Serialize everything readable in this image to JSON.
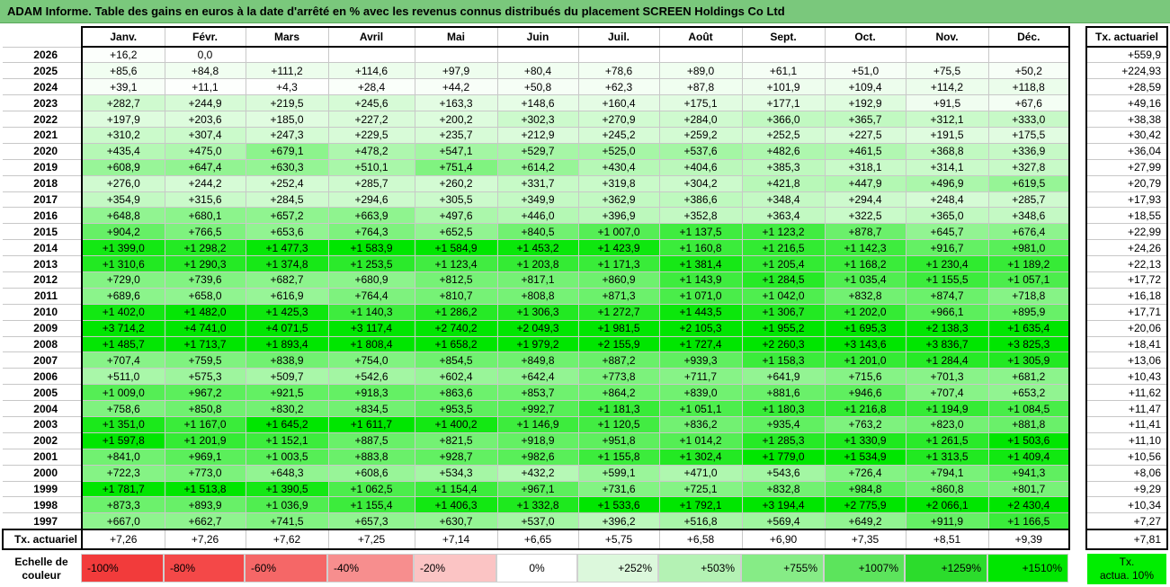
{
  "title": "ADAM Informe. Table des gains en euros à la date d'arrêté en % avec les revenus connus distribués du placement SCREEN Holdings Co Ltd",
  "chart_data": {
    "type": "table",
    "columns": [
      "Janv.",
      "Févr.",
      "Mars",
      "Avril",
      "Mai",
      "Juin",
      "Juil.",
      "Août",
      "Sept.",
      "Oct.",
      "Nov.",
      "Déc."
    ],
    "side_header": "Tx. actuariel",
    "rows": [
      {
        "year": "2026",
        "values": [
          "+16,2",
          "0,0",
          "",
          "",
          "",
          "",
          "",
          "",
          "",
          "",
          "",
          ""
        ],
        "nums": [
          16.2,
          0,
          null,
          null,
          null,
          null,
          null,
          null,
          null,
          null,
          null,
          null
        ],
        "tx": "+559,9"
      },
      {
        "year": "2025",
        "values": [
          "+85,6",
          "+84,8",
          "+111,2",
          "+114,6",
          "+97,9",
          "+80,4",
          "+78,6",
          "+89,0",
          "+61,1",
          "+51,0",
          "+75,5",
          "+50,2"
        ],
        "nums": [
          85.6,
          84.8,
          111.2,
          114.6,
          97.9,
          80.4,
          78.6,
          89.0,
          61.1,
          51.0,
          75.5,
          50.2
        ],
        "tx": "+224,93"
      },
      {
        "year": "2024",
        "values": [
          "+39,1",
          "+11,1",
          "+4,3",
          "+28,4",
          "+44,2",
          "+50,8",
          "+62,3",
          "+87,8",
          "+101,9",
          "+109,4",
          "+114,2",
          "+118,8"
        ],
        "nums": [
          39.1,
          11.1,
          4.3,
          28.4,
          44.2,
          50.8,
          62.3,
          87.8,
          101.9,
          109.4,
          114.2,
          118.8
        ],
        "tx": "+28,59"
      },
      {
        "year": "2023",
        "values": [
          "+282,7",
          "+244,9",
          "+219,5",
          "+245,6",
          "+163,3",
          "+148,6",
          "+160,4",
          "+175,1",
          "+177,1",
          "+192,9",
          "+91,5",
          "+67,6"
        ],
        "nums": [
          282.7,
          244.9,
          219.5,
          245.6,
          163.3,
          148.6,
          160.4,
          175.1,
          177.1,
          192.9,
          91.5,
          67.6
        ],
        "tx": "+49,16"
      },
      {
        "year": "2022",
        "values": [
          "+197,9",
          "+203,6",
          "+185,0",
          "+227,2",
          "+200,2",
          "+302,3",
          "+270,9",
          "+284,0",
          "+366,0",
          "+365,7",
          "+312,1",
          "+333,0"
        ],
        "nums": [
          197.9,
          203.6,
          185.0,
          227.2,
          200.2,
          302.3,
          270.9,
          284.0,
          366.0,
          365.7,
          312.1,
          333.0
        ],
        "tx": "+38,38"
      },
      {
        "year": "2021",
        "values": [
          "+310,2",
          "+307,4",
          "+247,3",
          "+229,5",
          "+235,7",
          "+212,9",
          "+245,2",
          "+259,2",
          "+252,5",
          "+227,5",
          "+191,5",
          "+175,5"
        ],
        "nums": [
          310.2,
          307.4,
          247.3,
          229.5,
          235.7,
          212.9,
          245.2,
          259.2,
          252.5,
          227.5,
          191.5,
          175.5
        ],
        "tx": "+30,42"
      },
      {
        "year": "2020",
        "values": [
          "+435,4",
          "+475,0",
          "+679,1",
          "+478,2",
          "+547,1",
          "+529,7",
          "+525,0",
          "+537,6",
          "+482,6",
          "+461,5",
          "+368,8",
          "+336,9"
        ],
        "nums": [
          435.4,
          475.0,
          679.1,
          478.2,
          547.1,
          529.7,
          525.0,
          537.6,
          482.6,
          461.5,
          368.8,
          336.9
        ],
        "tx": "+36,04"
      },
      {
        "year": "2019",
        "values": [
          "+608,9",
          "+647,4",
          "+630,3",
          "+510,1",
          "+751,4",
          "+614,2",
          "+430,4",
          "+404,6",
          "+385,3",
          "+318,1",
          "+314,1",
          "+327,8"
        ],
        "nums": [
          608.9,
          647.4,
          630.3,
          510.1,
          751.4,
          614.2,
          430.4,
          404.6,
          385.3,
          318.1,
          314.1,
          327.8
        ],
        "tx": "+27,99"
      },
      {
        "year": "2018",
        "values": [
          "+276,0",
          "+244,2",
          "+252,4",
          "+285,7",
          "+260,2",
          "+331,7",
          "+319,8",
          "+304,2",
          "+421,8",
          "+447,9",
          "+496,9",
          "+619,5"
        ],
        "nums": [
          276.0,
          244.2,
          252.4,
          285.7,
          260.2,
          331.7,
          319.8,
          304.2,
          421.8,
          447.9,
          496.9,
          619.5
        ],
        "tx": "+20,79"
      },
      {
        "year": "2017",
        "values": [
          "+354,9",
          "+315,6",
          "+284,5",
          "+294,6",
          "+305,5",
          "+349,9",
          "+362,9",
          "+386,6",
          "+348,4",
          "+294,4",
          "+248,4",
          "+285,7"
        ],
        "nums": [
          354.9,
          315.6,
          284.5,
          294.6,
          305.5,
          349.9,
          362.9,
          386.6,
          348.4,
          294.4,
          248.4,
          285.7
        ],
        "tx": "+17,93"
      },
      {
        "year": "2016",
        "values": [
          "+648,8",
          "+680,1",
          "+657,2",
          "+663,9",
          "+497,6",
          "+446,0",
          "+396,9",
          "+352,8",
          "+363,4",
          "+322,5",
          "+365,0",
          "+348,6"
        ],
        "nums": [
          648.8,
          680.1,
          657.2,
          663.9,
          497.6,
          446.0,
          396.9,
          352.8,
          363.4,
          322.5,
          365.0,
          348.6
        ],
        "tx": "+18,55"
      },
      {
        "year": "2015",
        "values": [
          "+904,2",
          "+766,5",
          "+653,6",
          "+764,3",
          "+652,5",
          "+840,5",
          "+1 007,0",
          "+1 137,5",
          "+1 123,2",
          "+878,7",
          "+645,7",
          "+676,4"
        ],
        "nums": [
          904.2,
          766.5,
          653.6,
          764.3,
          652.5,
          840.5,
          1007.0,
          1137.5,
          1123.2,
          878.7,
          645.7,
          676.4
        ],
        "tx": "+22,99"
      },
      {
        "year": "2014",
        "values": [
          "+1 399,0",
          "+1 298,2",
          "+1 477,3",
          "+1 583,9",
          "+1 584,9",
          "+1 453,2",
          "+1 423,9",
          "+1 160,8",
          "+1 216,5",
          "+1 142,3",
          "+916,7",
          "+981,0"
        ],
        "nums": [
          1399.0,
          1298.2,
          1477.3,
          1583.9,
          1584.9,
          1453.2,
          1423.9,
          1160.8,
          1216.5,
          1142.3,
          916.7,
          981.0
        ],
        "tx": "+24,26"
      },
      {
        "year": "2013",
        "values": [
          "+1 310,6",
          "+1 290,3",
          "+1 374,8",
          "+1 253,5",
          "+1 123,4",
          "+1 203,8",
          "+1 171,3",
          "+1 381,4",
          "+1 205,4",
          "+1 168,2",
          "+1 230,4",
          "+1 189,2"
        ],
        "nums": [
          1310.6,
          1290.3,
          1374.8,
          1253.5,
          1123.4,
          1203.8,
          1171.3,
          1381.4,
          1205.4,
          1168.2,
          1230.4,
          1189.2
        ],
        "tx": "+22,13"
      },
      {
        "year": "2012",
        "values": [
          "+729,0",
          "+739,6",
          "+682,7",
          "+680,9",
          "+812,5",
          "+817,1",
          "+860,9",
          "+1 143,9",
          "+1 284,5",
          "+1 035,4",
          "+1 155,5",
          "+1 057,1"
        ],
        "nums": [
          729.0,
          739.6,
          682.7,
          680.9,
          812.5,
          817.1,
          860.9,
          1143.9,
          1284.5,
          1035.4,
          1155.5,
          1057.1
        ],
        "tx": "+17,72"
      },
      {
        "year": "2011",
        "values": [
          "+689,6",
          "+658,0",
          "+616,9",
          "+764,4",
          "+810,7",
          "+808,8",
          "+871,3",
          "+1 071,0",
          "+1 042,0",
          "+832,8",
          "+874,7",
          "+718,8"
        ],
        "nums": [
          689.6,
          658.0,
          616.9,
          764.4,
          810.7,
          808.8,
          871.3,
          1071.0,
          1042.0,
          832.8,
          874.7,
          718.8
        ],
        "tx": "+16,18"
      },
      {
        "year": "2010",
        "values": [
          "+1 402,0",
          "+1 482,0",
          "+1 425,3",
          "+1 140,3",
          "+1 286,2",
          "+1 306,3",
          "+1 272,7",
          "+1 443,5",
          "+1 306,7",
          "+1 202,0",
          "+966,1",
          "+895,9"
        ],
        "nums": [
          1402.0,
          1482.0,
          1425.3,
          1140.3,
          1286.2,
          1306.3,
          1272.7,
          1443.5,
          1306.7,
          1202.0,
          966.1,
          895.9
        ],
        "tx": "+17,71"
      },
      {
        "year": "2009",
        "values": [
          "+3 714,2",
          "+4 741,0",
          "+4 071,5",
          "+3 117,4",
          "+2 740,2",
          "+2 049,3",
          "+1 981,5",
          "+2 105,3",
          "+1 955,2",
          "+1 695,3",
          "+2 138,3",
          "+1 635,4"
        ],
        "nums": [
          3714.2,
          4741.0,
          4071.5,
          3117.4,
          2740.2,
          2049.3,
          1981.5,
          2105.3,
          1955.2,
          1695.3,
          2138.3,
          1635.4
        ],
        "tx": "+20,06"
      },
      {
        "year": "2008",
        "values": [
          "+1 485,7",
          "+1 713,7",
          "+1 893,4",
          "+1 808,4",
          "+1 658,2",
          "+1 979,2",
          "+2 155,9",
          "+1 727,4",
          "+2 260,3",
          "+3 143,6",
          "+3 836,7",
          "+3 825,3"
        ],
        "nums": [
          1485.7,
          1713.7,
          1893.4,
          1808.4,
          1658.2,
          1979.2,
          2155.9,
          1727.4,
          2260.3,
          3143.6,
          3836.7,
          3825.3
        ],
        "tx": "+18,41"
      },
      {
        "year": "2007",
        "values": [
          "+707,4",
          "+759,5",
          "+838,9",
          "+754,0",
          "+854,5",
          "+849,8",
          "+887,2",
          "+939,3",
          "+1 158,3",
          "+1 201,0",
          "+1 284,4",
          "+1 305,9"
        ],
        "nums": [
          707.4,
          759.5,
          838.9,
          754.0,
          854.5,
          849.8,
          887.2,
          939.3,
          1158.3,
          1201.0,
          1284.4,
          1305.9
        ],
        "tx": "+13,06"
      },
      {
        "year": "2006",
        "values": [
          "+511,0",
          "+575,3",
          "+509,7",
          "+542,6",
          "+602,4",
          "+642,4",
          "+773,8",
          "+711,7",
          "+641,9",
          "+715,6",
          "+701,3",
          "+681,2"
        ],
        "nums": [
          511.0,
          575.3,
          509.7,
          542.6,
          602.4,
          642.4,
          773.8,
          711.7,
          641.9,
          715.6,
          701.3,
          681.2
        ],
        "tx": "+10,43"
      },
      {
        "year": "2005",
        "values": [
          "+1 009,0",
          "+967,2",
          "+921,5",
          "+918,3",
          "+863,6",
          "+853,7",
          "+864,2",
          "+839,0",
          "+881,6",
          "+946,6",
          "+707,4",
          "+653,2"
        ],
        "nums": [
          1009.0,
          967.2,
          921.5,
          918.3,
          863.6,
          853.7,
          864.2,
          839.0,
          881.6,
          946.6,
          707.4,
          653.2
        ],
        "tx": "+11,62"
      },
      {
        "year": "2004",
        "values": [
          "+758,6",
          "+850,8",
          "+830,2",
          "+834,5",
          "+953,5",
          "+992,7",
          "+1 181,3",
          "+1 051,1",
          "+1 180,3",
          "+1 216,8",
          "+1 194,9",
          "+1 084,5"
        ],
        "nums": [
          758.6,
          850.8,
          830.2,
          834.5,
          953.5,
          992.7,
          1181.3,
          1051.1,
          1180.3,
          1216.8,
          1194.9,
          1084.5
        ],
        "tx": "+11,47"
      },
      {
        "year": "2003",
        "values": [
          "+1 351,0",
          "+1 167,0",
          "+1 645,2",
          "+1 611,7",
          "+1 400,2",
          "+1 146,9",
          "+1 120,5",
          "+836,2",
          "+935,4",
          "+763,2",
          "+823,0",
          "+881,8"
        ],
        "nums": [
          1351.0,
          1167.0,
          1645.2,
          1611.7,
          1400.2,
          1146.9,
          1120.5,
          836.2,
          935.4,
          763.2,
          823.0,
          881.8
        ],
        "tx": "+11,41"
      },
      {
        "year": "2002",
        "values": [
          "+1 597,8",
          "+1 201,9",
          "+1 152,1",
          "+887,5",
          "+821,5",
          "+918,9",
          "+951,8",
          "+1 014,2",
          "+1 285,3",
          "+1 330,9",
          "+1 261,5",
          "+1 503,6"
        ],
        "nums": [
          1597.8,
          1201.9,
          1152.1,
          887.5,
          821.5,
          918.9,
          951.8,
          1014.2,
          1285.3,
          1330.9,
          1261.5,
          1503.6
        ],
        "tx": "+11,10"
      },
      {
        "year": "2001",
        "values": [
          "+841,0",
          "+969,1",
          "+1 003,5",
          "+883,8",
          "+928,7",
          "+982,6",
          "+1 155,8",
          "+1 302,4",
          "+1 779,0",
          "+1 534,9",
          "+1 313,5",
          "+1 409,4"
        ],
        "nums": [
          841.0,
          969.1,
          1003.5,
          883.8,
          928.7,
          982.6,
          1155.8,
          1302.4,
          1779.0,
          1534.9,
          1313.5,
          1409.4
        ],
        "tx": "+10,56"
      },
      {
        "year": "2000",
        "values": [
          "+722,3",
          "+773,0",
          "+648,3",
          "+608,6",
          "+534,3",
          "+432,2",
          "+599,1",
          "+471,0",
          "+543,6",
          "+726,4",
          "+794,1",
          "+941,3"
        ],
        "nums": [
          722.3,
          773.0,
          648.3,
          608.6,
          534.3,
          432.2,
          599.1,
          471.0,
          543.6,
          726.4,
          794.1,
          941.3
        ],
        "tx": "+8,06"
      },
      {
        "year": "1999",
        "values": [
          "+1 781,7",
          "+1 513,8",
          "+1 390,5",
          "+1 062,5",
          "+1 154,4",
          "+967,1",
          "+731,6",
          "+725,1",
          "+832,8",
          "+984,8",
          "+860,8",
          "+801,7"
        ],
        "nums": [
          1781.7,
          1513.8,
          1390.5,
          1062.5,
          1154.4,
          967.1,
          731.6,
          725.1,
          832.8,
          984.8,
          860.8,
          801.7
        ],
        "tx": "+9,29"
      },
      {
        "year": "1998",
        "values": [
          "+873,3",
          "+893,9",
          "+1 036,9",
          "+1 155,4",
          "+1 406,3",
          "+1 332,8",
          "+1 533,6",
          "+1 792,1",
          "+3 194,4",
          "+2 775,9",
          "+2 066,1",
          "+2 430,4"
        ],
        "nums": [
          873.3,
          893.9,
          1036.9,
          1155.4,
          1406.3,
          1332.8,
          1533.6,
          1792.1,
          3194.4,
          2775.9,
          2066.1,
          2430.4
        ],
        "tx": "+10,34"
      },
      {
        "year": "1997",
        "values": [
          "+667,0",
          "+662,7",
          "+741,5",
          "+657,3",
          "+630,7",
          "+537,0",
          "+396,2",
          "+516,8",
          "+569,4",
          "+649,2",
          "+911,9",
          "+1 166,5"
        ],
        "nums": [
          667.0,
          662.7,
          741.5,
          657.3,
          630.7,
          537.0,
          396.2,
          516.8,
          569.4,
          649.2,
          911.9,
          1166.5
        ],
        "tx": "+7,27"
      }
    ],
    "footer": {
      "label": "Tx. actuariel",
      "values": [
        "+7,26",
        "+7,26",
        "+7,62",
        "+7,25",
        "+7,14",
        "+6,65",
        "+5,75",
        "+6,58",
        "+6,90",
        "+7,35",
        "+8,51",
        "+9,39"
      ],
      "total": "+7,81"
    },
    "scale": {
      "label": "Echelle de\ncouleur",
      "items": [
        {
          "text": "-100%",
          "color": "#f23b3b",
          "align": "left"
        },
        {
          "text": "-80%",
          "color": "#f44848",
          "align": "left"
        },
        {
          "text": "-60%",
          "color": "#f56767",
          "align": "left"
        },
        {
          "text": "-40%",
          "color": "#f78e8e",
          "align": "left"
        },
        {
          "text": "-20%",
          "color": "#fbc4c4",
          "align": "left"
        },
        {
          "text": "0%",
          "color": "#ffffff",
          "align": "center"
        },
        {
          "text": "+252%",
          "color": "#dcf8dc",
          "align": "right"
        },
        {
          "text": "+503%",
          "color": "#b4f2b4",
          "align": "right"
        },
        {
          "text": "+755%",
          "color": "#86ec86",
          "align": "right"
        },
        {
          "text": "+1007%",
          "color": "#5ce45c",
          "align": "right"
        },
        {
          "text": "+1259%",
          "color": "#2cdc2c",
          "align": "right"
        },
        {
          "text": "+1510%",
          "color": "#00e600",
          "align": "right"
        }
      ],
      "tx_label": "Tx.\nactua. 10%",
      "tx_color": "#00ee00"
    }
  }
}
